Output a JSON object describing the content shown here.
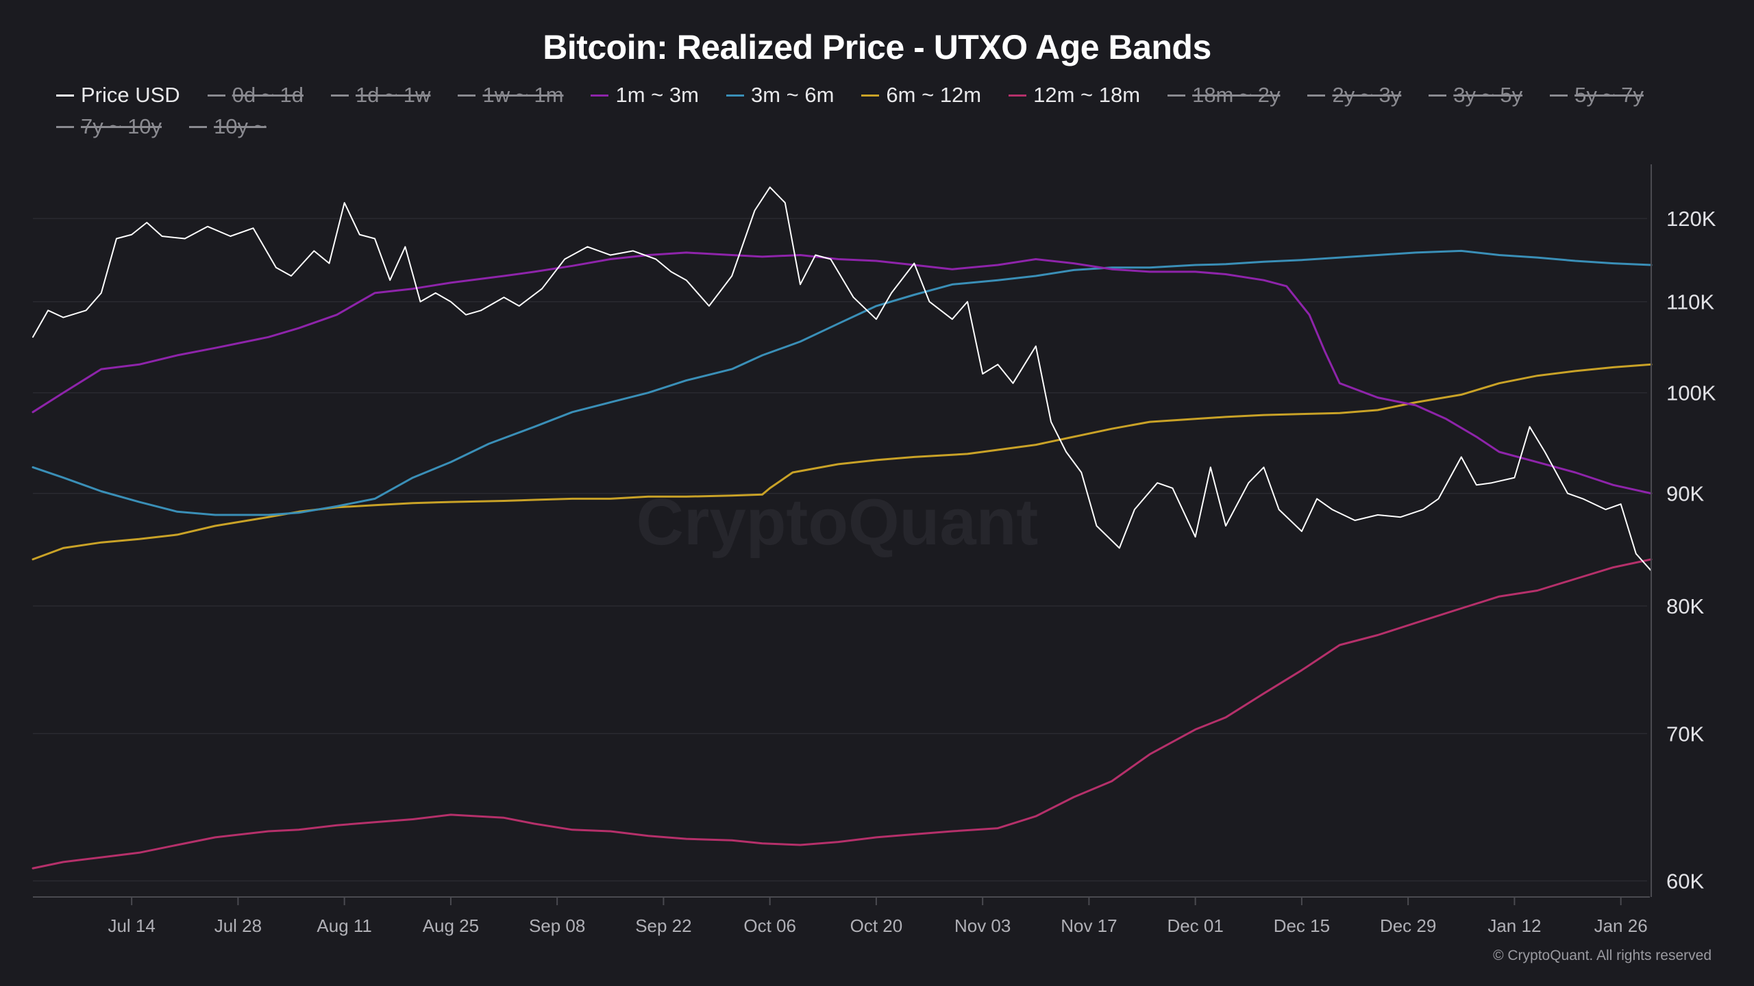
{
  "chart_data": {
    "type": "line",
    "title": "Bitcoin: Realized Price - UTXO Age Bands",
    "watermark": "CryptoQuant",
    "footer": "© CryptoQuant. All rights reserved",
    "x_ticks": [
      "Jul 14",
      "Jul 28",
      "Aug 11",
      "Aug 25",
      "Sep 08",
      "Sep 22",
      "Oct 06",
      "Oct 20",
      "Nov 03",
      "Nov 17",
      "Dec 01",
      "Dec 15",
      "Dec 29",
      "Jan 12",
      "Jan 26"
    ],
    "x_start": "Jul 01",
    "x_end": "Jan 30",
    "y_scale": "log",
    "y_ticks": [
      {
        "value": 60000,
        "label": "60K"
      },
      {
        "value": 70000,
        "label": "70K"
      },
      {
        "value": 80000,
        "label": "80K"
      },
      {
        "value": 90000,
        "label": "90K"
      },
      {
        "value": 100000,
        "label": "100K"
      },
      {
        "value": 110000,
        "label": "110K"
      },
      {
        "value": 120000,
        "label": "120K"
      }
    ],
    "ylim": [
      59000,
      127000
    ],
    "legend_position": "top",
    "legend": [
      {
        "name": "Price USD",
        "color": "#ffffff",
        "enabled": true
      },
      {
        "name": "0d ~ 1d",
        "color": "#8a8a90",
        "enabled": false
      },
      {
        "name": "1d ~ 1w",
        "color": "#8a8a90",
        "enabled": false
      },
      {
        "name": "1w ~ 1m",
        "color": "#8a8a90",
        "enabled": false
      },
      {
        "name": "1m ~ 3m",
        "color": "#8e24aa",
        "enabled": true
      },
      {
        "name": "3m ~ 6m",
        "color": "#3a8fb7",
        "enabled": true
      },
      {
        "name": "6m ~ 12m",
        "color": "#c9a227",
        "enabled": true
      },
      {
        "name": "12m ~ 18m",
        "color": "#b5306a",
        "enabled": true
      },
      {
        "name": "18m ~ 2y",
        "color": "#8a8a90",
        "enabled": false
      },
      {
        "name": "2y ~ 3y",
        "color": "#8a8a90",
        "enabled": false
      },
      {
        "name": "3y ~ 5y",
        "color": "#8a8a90",
        "enabled": false
      },
      {
        "name": "5y ~ 7y",
        "color": "#8a8a90",
        "enabled": false
      },
      {
        "name": "7y ~ 10y",
        "color": "#8a8a90",
        "enabled": false
      },
      {
        "name": "10y ~",
        "color": "#8a8a90",
        "enabled": false
      }
    ],
    "series": [
      {
        "name": "Price USD",
        "color": "#ffffff",
        "x": [
          "Jul 01",
          "Jul 03",
          "Jul 05",
          "Jul 08",
          "Jul 10",
          "Jul 12",
          "Jul 14",
          "Jul 16",
          "Jul 18",
          "Jul 21",
          "Jul 24",
          "Jul 27",
          "Jul 30",
          "Aug 02",
          "Aug 04",
          "Aug 07",
          "Aug 09",
          "Aug 11",
          "Aug 13",
          "Aug 15",
          "Aug 17",
          "Aug 19",
          "Aug 21",
          "Aug 23",
          "Aug 25",
          "Aug 27",
          "Aug 29",
          "Sep 01",
          "Sep 03",
          "Sep 06",
          "Sep 09",
          "Sep 12",
          "Sep 15",
          "Sep 18",
          "Sep 21",
          "Sep 23",
          "Sep 25",
          "Sep 28",
          "Oct 01",
          "Oct 04",
          "Oct 06",
          "Oct 08",
          "Oct 10",
          "Oct 12",
          "Oct 14",
          "Oct 17",
          "Oct 20",
          "Oct 22",
          "Oct 25",
          "Oct 27",
          "Oct 30",
          "Nov 01",
          "Nov 03",
          "Nov 05",
          "Nov 07",
          "Nov 10",
          "Nov 12",
          "Nov 14",
          "Nov 16",
          "Nov 18",
          "Nov 21",
          "Nov 23",
          "Nov 26",
          "Nov 28",
          "Dec 01",
          "Dec 03",
          "Dec 05",
          "Dec 08",
          "Dec 10",
          "Dec 12",
          "Dec 15",
          "Dec 17",
          "Dec 19",
          "Dec 22",
          "Dec 25",
          "Dec 28",
          "Dec 31",
          "Jan 02",
          "Jan 05",
          "Jan 07",
          "Jan 09",
          "Jan 12",
          "Jan 14",
          "Jan 16",
          "Jan 19",
          "Jan 21",
          "Jan 24",
          "Jan 26",
          "Jan 28",
          "Jan 30"
        ],
        "y": [
          106000,
          109000,
          108200,
          109000,
          111000,
          117500,
          118000,
          119500,
          117800,
          117500,
          119000,
          117800,
          118800,
          114000,
          113000,
          116000,
          114500,
          122000,
          118000,
          117500,
          112500,
          116500,
          110000,
          111000,
          110000,
          108500,
          109000,
          110500,
          109500,
          111500,
          115000,
          116500,
          115500,
          116000,
          115000,
          113500,
          112500,
          109500,
          113000,
          121000,
          124000,
          122000,
          112000,
          115500,
          115000,
          110500,
          108000,
          111000,
          114500,
          110000,
          108000,
          110000,
          102000,
          103000,
          101000,
          105000,
          97000,
          94000,
          92000,
          87000,
          85000,
          88500,
          91000,
          90500,
          86000,
          92500,
          87000,
          91000,
          92500,
          88500,
          86500,
          89500,
          88500,
          87500,
          88000,
          87800,
          88500,
          89500,
          93500,
          90800,
          91000,
          91500,
          96500,
          94000,
          90000,
          89500,
          88500,
          89000,
          84500,
          83000
        ]
      },
      {
        "name": "1m ~ 3m",
        "color": "#8e24aa",
        "x": [
          "Jul 01",
          "Jul 05",
          "Jul 10",
          "Jul 15",
          "Jul 20",
          "Jul 25",
          "Aug 01",
          "Aug 05",
          "Aug 10",
          "Aug 15",
          "Aug 20",
          "Aug 25",
          "Sep 01",
          "Sep 05",
          "Sep 10",
          "Sep 15",
          "Sep 20",
          "Sep 25",
          "Oct 01",
          "Oct 05",
          "Oct 10",
          "Oct 15",
          "Oct 20",
          "Oct 25",
          "Oct 30",
          "Nov 05",
          "Nov 10",
          "Nov 15",
          "Nov 20",
          "Nov 25",
          "Dec 01",
          "Dec 05",
          "Dec 10",
          "Dec 13",
          "Dec 16",
          "Dec 18",
          "Dec 20",
          "Dec 25",
          "Dec 30",
          "Jan 03",
          "Jan 07",
          "Jan 10",
          "Jan 15",
          "Jan 20",
          "Jan 25",
          "Jan 30"
        ],
        "y": [
          98000,
          100000,
          102500,
          103000,
          104000,
          104800,
          106000,
          107000,
          108500,
          111000,
          111500,
          112200,
          113000,
          113500,
          114200,
          115000,
          115500,
          115800,
          115500,
          115300,
          115500,
          115000,
          114800,
          114300,
          113800,
          114300,
          115000,
          114500,
          113800,
          113500,
          113500,
          113200,
          112500,
          111800,
          108500,
          104500,
          101000,
          99500,
          98700,
          97300,
          95500,
          94000,
          93000,
          92000,
          90800,
          90000
        ]
      },
      {
        "name": "3m ~ 6m",
        "color": "#3a8fb7",
        "x": [
          "Jul 01",
          "Jul 05",
          "Jul 10",
          "Jul 15",
          "Jul 20",
          "Jul 25",
          "Aug 01",
          "Aug 05",
          "Aug 10",
          "Aug 15",
          "Aug 20",
          "Aug 25",
          "Aug 30",
          "Sep 05",
          "Sep 10",
          "Sep 15",
          "Sep 20",
          "Sep 25",
          "Oct 01",
          "Oct 05",
          "Oct 10",
          "Oct 15",
          "Oct 20",
          "Oct 25",
          "Oct 30",
          "Nov 05",
          "Nov 10",
          "Nov 15",
          "Nov 20",
          "Nov 25",
          "Dec 01",
          "Dec 05",
          "Dec 10",
          "Dec 15",
          "Dec 20",
          "Dec 25",
          "Dec 30",
          "Jan 05",
          "Jan 10",
          "Jan 15",
          "Jan 20",
          "Jan 25",
          "Jan 30"
        ],
        "y": [
          92500,
          91500,
          90200,
          89200,
          88300,
          88000,
          88000,
          88200,
          88800,
          89500,
          91500,
          93000,
          94800,
          96500,
          98000,
          99000,
          100000,
          101300,
          102500,
          104000,
          105500,
          107500,
          109500,
          110800,
          112000,
          112500,
          113000,
          113700,
          114000,
          114000,
          114300,
          114400,
          114700,
          114900,
          115200,
          115500,
          115800,
          116000,
          115500,
          115200,
          114800,
          114500,
          114300
        ]
      },
      {
        "name": "6m ~ 12m",
        "color": "#c9a227",
        "x": [
          "Jul 01",
          "Jul 05",
          "Jul 10",
          "Jul 15",
          "Jul 20",
          "Jul 25",
          "Aug 01",
          "Aug 05",
          "Aug 10",
          "Aug 15",
          "Aug 20",
          "Aug 25",
          "Sep 01",
          "Sep 05",
          "Sep 10",
          "Sep 15",
          "Sep 20",
          "Sep 25",
          "Oct 01",
          "Oct 05",
          "Oct 06",
          "Oct 09",
          "Oct 15",
          "Oct 20",
          "Oct 25",
          "Nov 01",
          "Nov 10",
          "Nov 15",
          "Nov 20",
          "Nov 25",
          "Dec 01",
          "Dec 05",
          "Dec 10",
          "Dec 15",
          "Dec 20",
          "Dec 25",
          "Dec 30",
          "Jan 05",
          "Jan 10",
          "Jan 15",
          "Jan 20",
          "Jan 25",
          "Jan 30"
        ],
        "y": [
          84000,
          85000,
          85500,
          85800,
          86200,
          87000,
          87800,
          88300,
          88700,
          88900,
          89100,
          89200,
          89300,
          89400,
          89500,
          89500,
          89700,
          89700,
          89800,
          89900,
          90500,
          92000,
          92800,
          93200,
          93500,
          93800,
          94700,
          95500,
          96300,
          97000,
          97300,
          97500,
          97700,
          97800,
          97900,
          98200,
          99000,
          99800,
          101000,
          101800,
          102300,
          102700,
          103000
        ]
      },
      {
        "name": "12m ~ 18m",
        "color": "#b5306a",
        "x": [
          "Jul 01",
          "Jul 05",
          "Jul 10",
          "Jul 15",
          "Jul 20",
          "Jul 25",
          "Aug 01",
          "Aug 05",
          "Aug 10",
          "Aug 15",
          "Aug 20",
          "Aug 25",
          "Sep 01",
          "Sep 05",
          "Sep 10",
          "Sep 15",
          "Sep 20",
          "Sep 25",
          "Oct 01",
          "Oct 05",
          "Oct 10",
          "Oct 15",
          "Oct 20",
          "Oct 25",
          "Oct 30",
          "Nov 05",
          "Nov 10",
          "Nov 15",
          "Nov 20",
          "Nov 25",
          "Dec 01",
          "Dec 05",
          "Dec 10",
          "Dec 15",
          "Dec 20",
          "Dec 25",
          "Dec 30",
          "Jan 05",
          "Jan 10",
          "Jan 15",
          "Jan 20",
          "Jan 25",
          "Jan 30"
        ],
        "y": [
          60800,
          61200,
          61500,
          61800,
          62300,
          62800,
          63200,
          63300,
          63600,
          63800,
          64000,
          64300,
          64100,
          63700,
          63300,
          63200,
          62900,
          62700,
          62600,
          62400,
          62300,
          62500,
          62800,
          63000,
          63200,
          63400,
          64200,
          65500,
          66600,
          68500,
          70300,
          71200,
          73000,
          74800,
          76800,
          77600,
          78600,
          79800,
          80800,
          81300,
          82300,
          83300,
          84000
        ]
      }
    ]
  }
}
